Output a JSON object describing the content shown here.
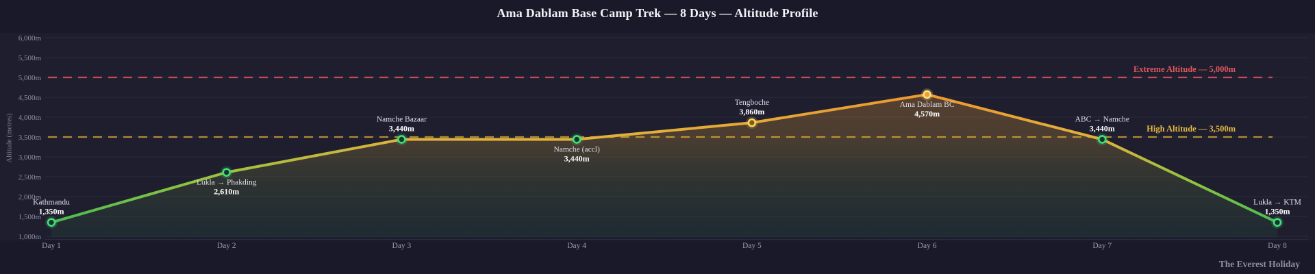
{
  "title": "Ama Dablam Base Camp Trek — 8 Days — Altitude Profile",
  "footer": {
    "brand": "The Everest Holiday"
  },
  "y_axis": {
    "label": "Altitude (metres)",
    "min": 1000,
    "max": 6000,
    "step": 500,
    "tick_values": [
      1000,
      1500,
      2000,
      2500,
      3000,
      3500,
      4000,
      4500,
      5000,
      5500,
      6000
    ],
    "tick_labels": [
      "1,000m",
      "1,500m",
      "2,000m",
      "2,500m",
      "3,000m",
      "3,500m",
      "4,000m",
      "4,500m",
      "5,000m",
      "5,500m",
      "6,000m"
    ]
  },
  "x_axis": {
    "labels": [
      "Day 1",
      "Day 2",
      "Day 3",
      "Day 4",
      "Day 5",
      "Day 6",
      "Day 7",
      "Day 8"
    ]
  },
  "thresholds": [
    {
      "id": "extreme",
      "label": "Extreme Altitude — 5,000m",
      "value": 5000,
      "color": "#d94f5c",
      "label_color": "#e2565e"
    },
    {
      "id": "high",
      "label": "High Altitude — 3,500m",
      "value": 3500,
      "color": "#c0982f",
      "label_color": "#e5b93f"
    }
  ],
  "chart_data": {
    "type": "area",
    "title": "Ama Dablam Base Camp Trek — 8 Days — Altitude Profile",
    "xlabel": "",
    "ylabel": "Altitude (metres)",
    "ylim": [
      1000,
      6000
    ],
    "grid": true,
    "legend": false,
    "x": [
      "Day 1",
      "Day 2",
      "Day 3",
      "Day 4",
      "Day 5",
      "Day 6",
      "Day 7",
      "Day 8"
    ],
    "series": [
      {
        "name": "Altitude",
        "values": [
          1350,
          2610,
          3440,
          3440,
          3860,
          4570,
          3440,
          1350
        ]
      }
    ],
    "points": [
      {
        "day": "Day 1",
        "name": "Kathmandu",
        "altitude": 1350,
        "value_label": "1,350m",
        "label_position": "above",
        "marker": "green"
      },
      {
        "day": "Day 2",
        "name": "Lukla → Phakding",
        "altitude": 2610,
        "value_label": "2,610m",
        "label_position": "below",
        "marker": "green"
      },
      {
        "day": "Day 3",
        "name": "Namche Bazaar",
        "altitude": 3440,
        "value_label": "3,440m",
        "label_position": "above",
        "marker": "green"
      },
      {
        "day": "Day 4",
        "name": "Namche (accl)",
        "altitude": 3440,
        "value_label": "3,440m",
        "label_position": "below",
        "marker": "green"
      },
      {
        "day": "Day 5",
        "name": "Tengboche",
        "altitude": 3860,
        "value_label": "3,860m",
        "label_position": "above",
        "marker": "gold"
      },
      {
        "day": "Day 6",
        "name": "Ama Dablam BC",
        "altitude": 4570,
        "value_label": "4,570m",
        "label_position": "below",
        "marker": "orange"
      },
      {
        "day": "Day 7",
        "name": "ABC → Namche",
        "altitude": 3440,
        "value_label": "3,440m",
        "label_position": "above",
        "marker": "green"
      },
      {
        "day": "Day 8",
        "name": "Lukla → KTM",
        "altitude": 1350,
        "value_label": "1,350m",
        "label_position": "above",
        "marker": "green"
      }
    ]
  },
  "colors": {
    "background": "#19192a",
    "plot_band": "rgba(255,255,255,0.025)",
    "grid": "rgba(255,255,255,0.05)",
    "axis_text": "#8f90a6",
    "day_text": "#9a9bb0",
    "point_name_text": "#dcdce4",
    "point_value_text": "#ffffff",
    "line_gradient": [
      "#2fb757",
      "#8fc43f",
      "#e2b13c",
      "#f08e2a"
    ],
    "area_gradient": [
      "rgba(47,183,87,0.08)",
      "rgba(150,180,60,0.14)",
      "rgba(230,170,55,0.22)",
      "rgba(240,142,42,0.30)"
    ],
    "markers": {
      "green": {
        "ring": "#42e07c",
        "fill": "#173528",
        "halo": "rgba(66,224,124,0.18)"
      },
      "gold": {
        "ring": "#ffd35e",
        "fill": "#7d5e17",
        "halo": "rgba(255,211,94,0.18)"
      },
      "orange": {
        "ring": "#ffe082",
        "fill": "#ef9c30",
        "halo": "rgba(255,224,130,0.22)"
      }
    }
  }
}
